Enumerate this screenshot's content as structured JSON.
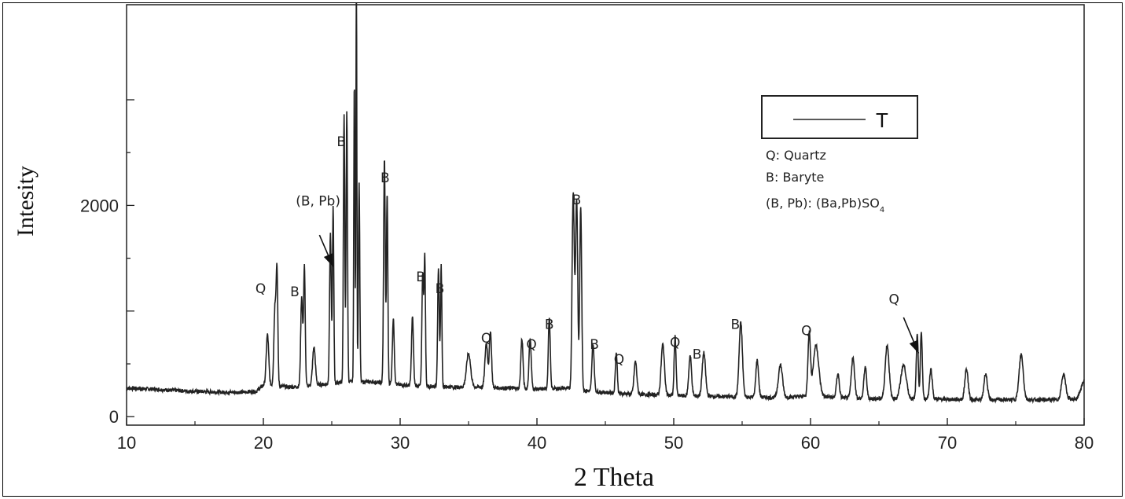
{
  "chart_data": {
    "type": "line",
    "title": "",
    "xlabel": "2 Theta",
    "ylabel": "Intesity",
    "xlim": [
      10,
      80
    ],
    "ylim": [
      -80,
      3900
    ],
    "x_ticks": [
      10,
      20,
      30,
      40,
      50,
      60,
      70,
      80
    ],
    "y_ticks": [
      0,
      2000
    ],
    "x_tick_labels": [
      "10",
      "20",
      "30",
      "40",
      "50",
      "60",
      "70",
      "80"
    ],
    "y_tick_labels": [
      "0",
      "2000"
    ],
    "grid": false,
    "legend": {
      "placement": "top-right",
      "series_label": "T",
      "key_lines": [
        "Q: Quartz",
        "B: Baryte",
        "(B, Pb): (Ba,Pb)SO"
      ],
      "key_subscript": "4"
    },
    "series": [
      {
        "name": "T",
        "color": "#222222",
        "baseline": [
          [
            10,
            270
          ],
          [
            12,
            260
          ],
          [
            14,
            245
          ],
          [
            16,
            235
          ],
          [
            18,
            230
          ],
          [
            19.5,
            240
          ],
          [
            20,
            300
          ],
          [
            22,
            280
          ],
          [
            24,
            300
          ],
          [
            26,
            330
          ],
          [
            28,
            330
          ],
          [
            30,
            300
          ],
          [
            32,
            290
          ],
          [
            34,
            280
          ],
          [
            36,
            280
          ],
          [
            38,
            270
          ],
          [
            40,
            260
          ],
          [
            42,
            270
          ],
          [
            44,
            240
          ],
          [
            46,
            220
          ],
          [
            48,
            210
          ],
          [
            50,
            200
          ],
          [
            52,
            195
          ],
          [
            54,
            190
          ],
          [
            56,
            185
          ],
          [
            58,
            180
          ],
          [
            60,
            200
          ],
          [
            62,
            180
          ],
          [
            64,
            170
          ],
          [
            66,
            170
          ],
          [
            68,
            170
          ],
          [
            70,
            165
          ],
          [
            72,
            160
          ],
          [
            74,
            160
          ],
          [
            76,
            160
          ],
          [
            78,
            160
          ],
          [
            79.5,
            170
          ],
          [
            80,
            350
          ]
        ],
        "peaks": [
          [
            20.3,
            480,
            0.09
          ],
          [
            20.85,
            750,
            0.08
          ],
          [
            21.0,
            1020,
            0.06
          ],
          [
            22.8,
            850,
            0.07
          ],
          [
            23.0,
            1130,
            0.06
          ],
          [
            23.7,
            360,
            0.1
          ],
          [
            24.9,
            1420,
            0.06
          ],
          [
            25.1,
            1660,
            0.05
          ],
          [
            25.9,
            2520,
            0.05
          ],
          [
            26.1,
            2570,
            0.05
          ],
          [
            26.65,
            2850,
            0.04
          ],
          [
            26.8,
            3830,
            0.035
          ],
          [
            27.0,
            1880,
            0.05
          ],
          [
            28.85,
            2120,
            0.06
          ],
          [
            29.05,
            1800,
            0.05
          ],
          [
            29.5,
            620,
            0.07
          ],
          [
            30.9,
            650,
            0.07
          ],
          [
            31.65,
            1070,
            0.06
          ],
          [
            31.8,
            1200,
            0.05
          ],
          [
            32.8,
            1100,
            0.06
          ],
          [
            33.0,
            1150,
            0.05
          ],
          [
            35.0,
            320,
            0.15
          ],
          [
            36.3,
            420,
            0.1
          ],
          [
            36.6,
            530,
            0.08
          ],
          [
            38.9,
            470,
            0.08
          ],
          [
            39.5,
            480,
            0.08
          ],
          [
            40.9,
            670,
            0.07
          ],
          [
            42.65,
            1850,
            0.08
          ],
          [
            42.9,
            1800,
            0.08
          ],
          [
            43.2,
            1740,
            0.07
          ],
          [
            44.1,
            450,
            0.08
          ],
          [
            45.8,
            380,
            0.07
          ],
          [
            47.2,
            310,
            0.1
          ],
          [
            49.2,
            480,
            0.12
          ],
          [
            50.1,
            560,
            0.07
          ],
          [
            51.2,
            380,
            0.1
          ],
          [
            52.2,
            410,
            0.12
          ],
          [
            54.9,
            700,
            0.12
          ],
          [
            56.1,
            350,
            0.1
          ],
          [
            57.8,
            310,
            0.15
          ],
          [
            59.9,
            590,
            0.09
          ],
          [
            60.4,
            480,
            0.2
          ],
          [
            62.0,
            230,
            0.1
          ],
          [
            63.1,
            380,
            0.12
          ],
          [
            64.0,
            300,
            0.1
          ],
          [
            65.6,
            510,
            0.14
          ],
          [
            66.8,
            320,
            0.2
          ],
          [
            67.8,
            600,
            0.07
          ],
          [
            68.1,
            630,
            0.07
          ],
          [
            68.8,
            280,
            0.1
          ],
          [
            71.4,
            290,
            0.12
          ],
          [
            72.8,
            250,
            0.12
          ],
          [
            75.4,
            430,
            0.15
          ],
          [
            78.5,
            240,
            0.15
          ]
        ]
      }
    ],
    "annotations": [
      {
        "text": "Q",
        "x": 19.8,
        "y": 1170
      },
      {
        "text": "B",
        "x": 22.3,
        "y": 1140
      },
      {
        "text": "(B, Pb)",
        "x": 24.0,
        "y": 2000
      },
      {
        "text": "B",
        "x": 25.7,
        "y": 2560
      },
      {
        "text": "B",
        "x": 28.9,
        "y": 2220
      },
      {
        "text": "B",
        "x": 31.5,
        "y": 1280
      },
      {
        "text": "B",
        "x": 32.9,
        "y": 1170
      },
      {
        "text": "Q",
        "x": 36.3,
        "y": 700
      },
      {
        "text": "Q",
        "x": 39.6,
        "y": 640
      },
      {
        "text": "B",
        "x": 40.9,
        "y": 830
      },
      {
        "text": "B",
        "x": 42.9,
        "y": 2010
      },
      {
        "text": "B",
        "x": 44.2,
        "y": 640
      },
      {
        "text": "Q",
        "x": 46.0,
        "y": 500
      },
      {
        "text": "Q",
        "x": 50.1,
        "y": 660
      },
      {
        "text": "B",
        "x": 51.7,
        "y": 550
      },
      {
        "text": "B",
        "x": 54.5,
        "y": 830
      },
      {
        "text": "Q",
        "x": 59.7,
        "y": 770
      },
      {
        "text": "Q",
        "x": 66.1,
        "y": 1070
      }
    ],
    "arrows": [
      {
        "from": [
          24.1,
          1720
        ],
        "to": [
          25.1,
          1420
        ]
      },
      {
        "from": [
          66.8,
          940
        ],
        "to": [
          67.9,
          600
        ]
      }
    ]
  }
}
